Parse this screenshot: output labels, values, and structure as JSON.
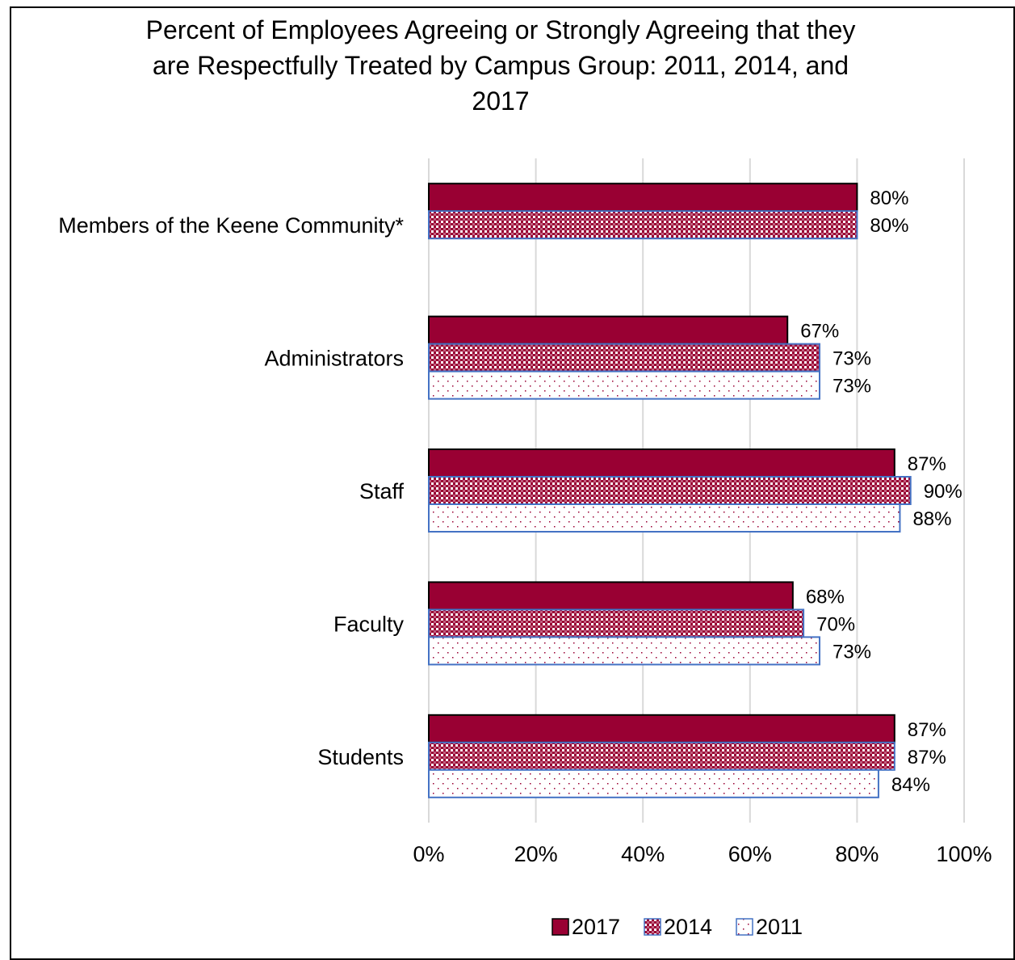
{
  "chart_data": {
    "type": "bar",
    "orientation": "horizontal",
    "title_lines": [
      "Percent of Employees Agreeing or Strongly Agreeing that they",
      "are Respectfully Treated by Campus Group: 2011, 2014, and",
      "2017"
    ],
    "categories": [
      "Members of the Keene Community*",
      "Administrators",
      "Staff",
      "Faculty",
      "Students"
    ],
    "series": [
      {
        "name": "2017",
        "values": [
          80,
          67,
          87,
          68,
          87
        ],
        "labels": [
          "80%",
          "67%",
          "87%",
          "68%",
          "87%"
        ],
        "color": "#990033",
        "pattern": "solid"
      },
      {
        "name": "2014",
        "values": [
          80,
          73,
          90,
          70,
          87
        ],
        "labels": [
          "80%",
          "73%",
          "90%",
          "70%",
          "87%"
        ],
        "color": "#990033",
        "pattern": "checker"
      },
      {
        "name": "2011",
        "values": [
          null,
          73,
          88,
          73,
          84
        ],
        "labels": [
          "",
          "73%",
          "88%",
          "73%",
          "84%"
        ],
        "color": "#4472c4",
        "pattern": "dots"
      }
    ],
    "x_ticks": [
      "0%",
      "20%",
      "40%",
      "60%",
      "80%",
      "100%"
    ],
    "xlim": [
      0,
      100
    ],
    "grid": "vertical",
    "legend": "bottom-center"
  }
}
